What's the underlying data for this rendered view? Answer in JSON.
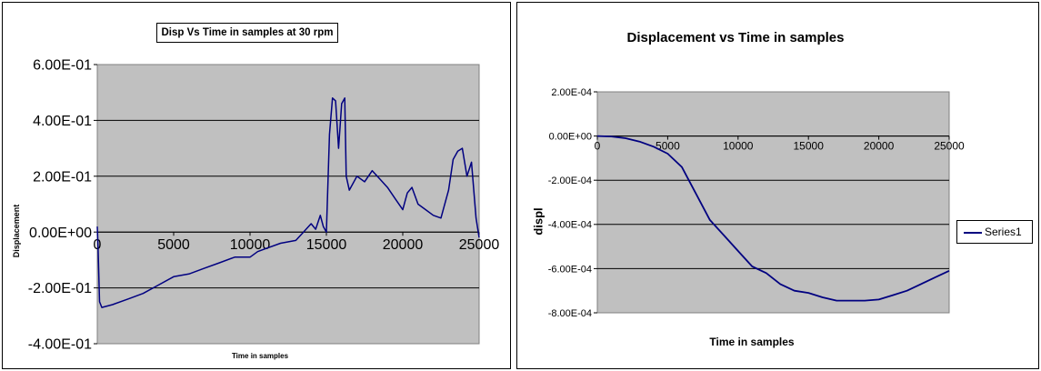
{
  "chart_data": [
    {
      "type": "line",
      "title": "Disp Vs Time in samples at 30 rpm",
      "xlabel": "Time in samples",
      "ylabel": "Displacement",
      "xlim": [
        0,
        25000
      ],
      "ylim": [
        -0.4,
        0.6
      ],
      "x_ticks": [
        "0",
        "5000",
        "10000",
        "15000",
        "20000",
        "25000"
      ],
      "y_ticks": [
        "6.00E-01",
        "4.00E-01",
        "2.00E-01",
        "0.00E+00",
        "-2.00E-01",
        "-4.00E-01"
      ],
      "grid": true,
      "plot_background": "#c0c0c0",
      "line_color": "#000080",
      "series": [
        {
          "x": [
            0,
            50,
            150,
            300,
            1000,
            2000,
            3000,
            4000,
            5000,
            6000,
            7000,
            8000,
            9000,
            10000,
            10500,
            11000,
            12000,
            13000,
            13500,
            14000,
            14300,
            14600,
            14800,
            15000,
            15200,
            15400,
            15600,
            15800,
            16000,
            16200,
            16300,
            16500,
            17000,
            17500,
            18000,
            18500,
            19000,
            19500,
            20000,
            20300,
            20600,
            21000,
            21500,
            22000,
            22500,
            23000,
            23300,
            23600,
            23900,
            24200,
            24500,
            24800,
            25000
          ],
          "y": [
            0.02,
            -0.05,
            -0.25,
            -0.27,
            -0.26,
            -0.24,
            -0.22,
            -0.19,
            -0.16,
            -0.15,
            -0.13,
            -0.11,
            -0.09,
            -0.09,
            -0.07,
            -0.06,
            -0.04,
            -0.03,
            0.0,
            0.03,
            0.01,
            0.06,
            0.02,
            0.0,
            0.35,
            0.48,
            0.47,
            0.3,
            0.46,
            0.48,
            0.2,
            0.15,
            0.2,
            0.18,
            0.22,
            0.19,
            0.16,
            0.12,
            0.08,
            0.14,
            0.16,
            0.1,
            0.08,
            0.06,
            0.05,
            0.15,
            0.26,
            0.29,
            0.3,
            0.2,
            0.25,
            0.05,
            -0.02
          ]
        }
      ]
    },
    {
      "type": "line",
      "title": "Displacement vs Time in samples",
      "xlabel": "Time in samples",
      "ylabel": "displ",
      "xlim": [
        0,
        25000
      ],
      "ylim": [
        -0.0008,
        0.0002
      ],
      "x_ticks": [
        "0",
        "5000",
        "10000",
        "15000",
        "20000",
        "25000"
      ],
      "y_ticks": [
        "2.00E-04",
        "0.00E+00",
        "-2.00E-04",
        "-4.00E-04",
        "-6.00E-04",
        "-8.00E-04"
      ],
      "grid": true,
      "plot_background": "#c0c0c0",
      "line_color": "#000080",
      "legend_placement": "right",
      "series": [
        {
          "name": "Series1",
          "x": [
            0,
            1000,
            2000,
            3000,
            4000,
            5000,
            6000,
            7000,
            8000,
            9000,
            10000,
            11000,
            12000,
            13000,
            14000,
            15000,
            16000,
            17000,
            18000,
            19000,
            20000,
            21000,
            22000,
            23000,
            24000,
            25000
          ],
          "y": [
            0.0,
            -2e-06,
            -1e-05,
            -2.5e-05,
            -4.8e-05,
            -8e-05,
            -0.00014,
            -0.00026,
            -0.00038,
            -0.00045,
            -0.00052,
            -0.00059,
            -0.00062,
            -0.00067,
            -0.0007,
            -0.00071,
            -0.00073,
            -0.000745,
            -0.000745,
            -0.000745,
            -0.00074,
            -0.00072,
            -0.0007,
            -0.00067,
            -0.00064,
            -0.00061
          ]
        }
      ]
    }
  ]
}
